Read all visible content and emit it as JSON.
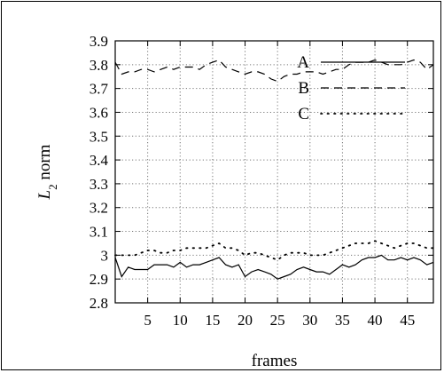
{
  "chart_data": {
    "type": "line",
    "xlabel": "frames",
    "ylabel_main": "L",
    "ylabel_sub": "2",
    "ylabel_rest": " norm",
    "xlim": [
      0,
      49
    ],
    "ylim": [
      2.8,
      3.9
    ],
    "xticks": [
      5,
      10,
      15,
      20,
      25,
      30,
      35,
      40,
      45
    ],
    "yticks": [
      "2.8",
      "2.9",
      "3",
      "3.1",
      "3.2",
      "3.3",
      "3.4",
      "3.5",
      "3.6",
      "3.7",
      "3.8",
      "3.9"
    ],
    "grid": true,
    "legend_position": "top-right",
    "x": [
      0,
      1,
      2,
      3,
      4,
      5,
      6,
      7,
      8,
      9,
      10,
      11,
      12,
      13,
      14,
      15,
      16,
      17,
      18,
      19,
      20,
      21,
      22,
      23,
      24,
      25,
      26,
      27,
      28,
      29,
      30,
      31,
      32,
      33,
      34,
      35,
      36,
      37,
      38,
      39,
      40,
      41,
      42,
      43,
      44,
      45,
      46,
      47,
      48,
      49
    ],
    "series": [
      {
        "name": "A",
        "style": "solid",
        "values": [
          2.99,
          2.91,
          2.95,
          2.94,
          2.94,
          2.94,
          2.96,
          2.96,
          2.96,
          2.95,
          2.97,
          2.95,
          2.96,
          2.96,
          2.97,
          2.98,
          2.99,
          2.96,
          2.95,
          2.96,
          2.91,
          2.93,
          2.94,
          2.93,
          2.92,
          2.9,
          2.91,
          2.92,
          2.94,
          2.95,
          2.94,
          2.93,
          2.93,
          2.92,
          2.94,
          2.96,
          2.95,
          2.96,
          2.98,
          2.99,
          2.99,
          3.0,
          2.98,
          2.98,
          2.99,
          2.98,
          2.99,
          2.98,
          2.96,
          2.97
        ]
      },
      {
        "name": "B",
        "style": "dashed",
        "values": [
          3.81,
          3.76,
          3.77,
          3.77,
          3.78,
          3.78,
          3.77,
          3.78,
          3.79,
          3.78,
          3.79,
          3.79,
          3.79,
          3.78,
          3.8,
          3.81,
          3.82,
          3.79,
          3.78,
          3.77,
          3.76,
          3.77,
          3.77,
          3.76,
          3.74,
          3.73,
          3.75,
          3.76,
          3.76,
          3.77,
          3.77,
          3.77,
          3.76,
          3.77,
          3.78,
          3.78,
          3.8,
          3.81,
          3.81,
          3.81,
          3.82,
          3.81,
          3.8,
          3.8,
          3.8,
          3.81,
          3.82,
          3.81,
          3.78,
          3.8
        ]
      },
      {
        "name": "C",
        "style": "dotted",
        "values": [
          3.0,
          3.0,
          3.0,
          3.0,
          3.01,
          3.02,
          3.02,
          3.01,
          3.01,
          3.02,
          3.02,
          3.03,
          3.03,
          3.03,
          3.03,
          3.04,
          3.05,
          3.03,
          3.03,
          3.02,
          3.0,
          3.01,
          3.01,
          3.0,
          2.99,
          2.98,
          3.0,
          3.01,
          3.01,
          3.01,
          3.0,
          3.0,
          3.0,
          3.01,
          3.02,
          3.03,
          3.04,
          3.05,
          3.05,
          3.05,
          3.06,
          3.05,
          3.04,
          3.03,
          3.04,
          3.05,
          3.05,
          3.04,
          3.03,
          3.03
        ]
      }
    ]
  }
}
